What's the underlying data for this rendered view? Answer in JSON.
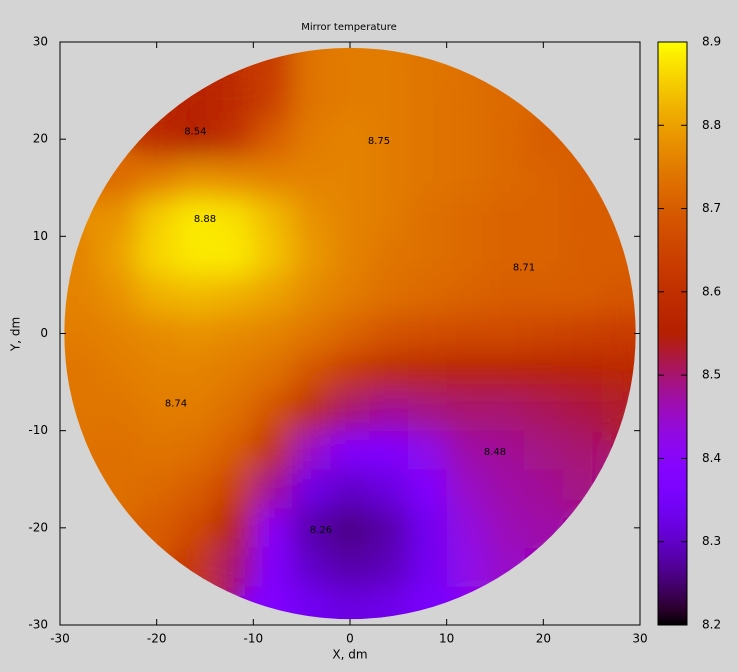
{
  "chart_data": {
    "type": "heatmap",
    "title": "Mirror temperature",
    "xlabel": "X, dm",
    "ylabel": "Y, dm",
    "colormap": "gnuplot",
    "xlim": [
      -30,
      30
    ],
    "ylim": [
      -30,
      30
    ],
    "xticks": [
      -30,
      -20,
      -10,
      0,
      10,
      20,
      30
    ],
    "yticks": [
      -30,
      -20,
      -10,
      0,
      10,
      20,
      30
    ],
    "cblim": [
      8.2,
      8.9
    ],
    "cbticks": [
      8.2,
      8.3,
      8.4,
      8.5,
      8.6,
      8.7,
      8.8,
      8.9
    ],
    "x": [
      -28,
      -24,
      -20,
      -16,
      -12,
      -8,
      -4,
      0,
      4,
      8,
      12,
      16,
      20,
      24,
      28
    ],
    "y": [
      28,
      24,
      20,
      16,
      12,
      8,
      4,
      0,
      -4,
      -8,
      -12,
      -16,
      -20,
      -24,
      -28
    ],
    "z": [
      [
        null,
        null,
        null,
        null,
        null,
        8.62,
        8.74,
        8.75,
        8.75,
        8.74,
        null,
        null,
        null,
        null,
        null
      ],
      [
        null,
        null,
        null,
        8.56,
        8.58,
        8.64,
        8.74,
        8.75,
        8.75,
        8.74,
        8.73,
        8.72,
        null,
        null,
        null
      ],
      [
        null,
        null,
        8.58,
        8.55,
        8.6,
        8.7,
        8.75,
        8.76,
        8.75,
        8.74,
        8.73,
        8.72,
        8.7,
        null,
        null
      ],
      [
        null,
        8.72,
        8.75,
        8.78,
        8.77,
        8.76,
        8.76,
        8.76,
        8.75,
        8.74,
        8.73,
        8.72,
        8.71,
        8.7,
        null
      ],
      [
        null,
        8.78,
        8.85,
        8.88,
        8.87,
        8.83,
        8.78,
        8.76,
        8.75,
        8.73,
        8.72,
        8.71,
        8.71,
        8.7,
        null
      ],
      [
        8.76,
        8.8,
        8.86,
        8.88,
        8.88,
        8.84,
        8.79,
        8.76,
        8.74,
        8.73,
        8.72,
        8.71,
        8.71,
        8.7,
        8.7
      ],
      [
        8.76,
        8.78,
        8.82,
        8.83,
        8.82,
        8.8,
        8.77,
        8.75,
        8.73,
        8.72,
        8.71,
        8.7,
        8.7,
        8.7,
        8.69
      ],
      [
        8.75,
        8.76,
        8.77,
        8.78,
        8.77,
        8.76,
        8.74,
        8.71,
        8.68,
        8.67,
        8.66,
        8.66,
        8.65,
        8.64,
        8.63
      ],
      [
        8.74,
        8.75,
        8.76,
        8.76,
        8.75,
        8.73,
        8.68,
        8.62,
        8.58,
        8.57,
        8.56,
        8.56,
        8.56,
        8.56,
        8.57
      ],
      [
        8.74,
        8.74,
        8.75,
        8.75,
        8.73,
        8.68,
        8.58,
        8.5,
        8.48,
        8.49,
        8.5,
        8.5,
        8.51,
        8.52,
        8.53
      ],
      [
        null,
        8.73,
        8.74,
        8.73,
        8.7,
        8.6,
        8.45,
        8.38,
        8.38,
        8.42,
        8.47,
        8.48,
        8.49,
        8.5,
        null
      ],
      [
        null,
        8.73,
        8.72,
        8.7,
        8.64,
        8.48,
        8.33,
        8.3,
        8.32,
        8.38,
        8.45,
        8.47,
        8.48,
        8.49,
        null
      ],
      [
        null,
        null,
        8.7,
        8.66,
        8.56,
        8.4,
        8.28,
        8.26,
        8.28,
        8.34,
        8.43,
        8.46,
        8.47,
        null,
        null
      ],
      [
        null,
        null,
        null,
        8.62,
        8.5,
        8.38,
        8.3,
        8.28,
        8.29,
        8.34,
        8.42,
        8.45,
        null,
        null,
        null
      ],
      [
        null,
        null,
        null,
        null,
        null,
        8.38,
        8.34,
        8.32,
        8.33,
        8.36,
        null,
        null,
        null,
        null,
        null
      ]
    ],
    "contour_labels": [
      {
        "value": 8.54,
        "x": -16,
        "y": 20.8
      },
      {
        "value": 8.75,
        "x": 3,
        "y": 19.8
      },
      {
        "value": 8.88,
        "x": -15,
        "y": 11.8
      },
      {
        "value": 8.71,
        "x": 18,
        "y": 6.8
      },
      {
        "value": 8.74,
        "x": -18,
        "y": -7.2
      },
      {
        "value": 8.48,
        "x": 15,
        "y": -12.2
      },
      {
        "value": 8.26,
        "x": -3,
        "y": -20.2
      }
    ]
  }
}
